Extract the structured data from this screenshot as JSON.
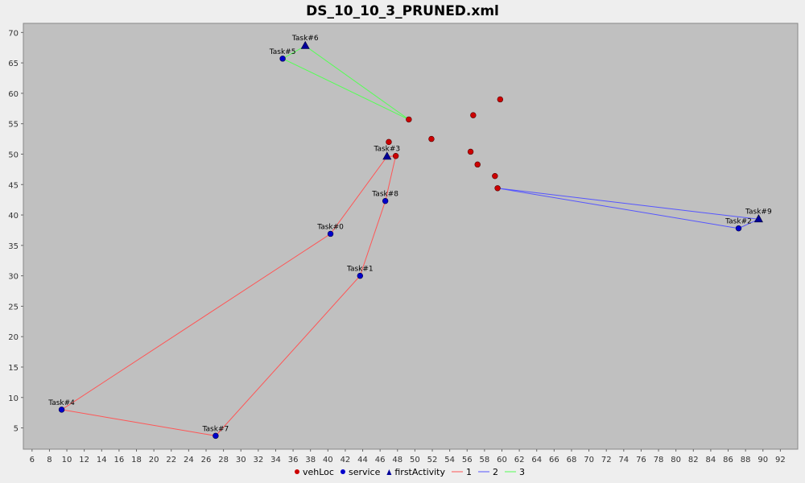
{
  "chart_data": {
    "type": "scatter",
    "title": "DS_10_10_3_PRUNED.xml",
    "xlabel": "",
    "ylabel": "",
    "xlim": [
      5,
      94
    ],
    "ylim": [
      1.5,
      71.5
    ],
    "x_ticks": [
      6,
      8,
      10,
      12,
      14,
      16,
      18,
      20,
      22,
      24,
      26,
      28,
      30,
      32,
      34,
      36,
      38,
      40,
      42,
      44,
      46,
      48,
      50,
      52,
      54,
      56,
      58,
      60,
      62,
      64,
      66,
      68,
      70,
      72,
      74,
      76,
      78,
      80,
      82,
      84,
      86,
      88,
      90,
      92
    ],
    "y_ticks": [
      5,
      10,
      15,
      20,
      25,
      30,
      35,
      40,
      45,
      50,
      55,
      60,
      65,
      70
    ],
    "grid": false,
    "legend_position": "bottom",
    "colors": {
      "plot_bg": "#c0c0c0",
      "vehLoc": "#cc0000",
      "service": "#0000cc",
      "firstActivity": "#000099",
      "route1": "#ff5555",
      "route2": "#5555ff",
      "route3": "#55ff55"
    },
    "legend": [
      {
        "label": "vehLoc",
        "kind": "dot",
        "color_key": "vehLoc"
      },
      {
        "label": "service",
        "kind": "dot",
        "color_key": "service"
      },
      {
        "label": "firstActivity",
        "kind": "triangle",
        "color_key": "firstActivity"
      },
      {
        "label": "1",
        "kind": "line",
        "color_key": "route1"
      },
      {
        "label": "2",
        "kind": "line",
        "color_key": "route2"
      },
      {
        "label": "3",
        "kind": "line",
        "color_key": "route3"
      }
    ],
    "vehLoc": [
      {
        "x": 49.3,
        "y": 55.7
      },
      {
        "x": 59.8,
        "y": 59.0
      },
      {
        "x": 56.7,
        "y": 56.4
      },
      {
        "x": 47.0,
        "y": 52.0
      },
      {
        "x": 51.9,
        "y": 52.5
      },
      {
        "x": 56.4,
        "y": 50.4
      },
      {
        "x": 47.8,
        "y": 49.7
      },
      {
        "x": 57.2,
        "y": 48.3
      },
      {
        "x": 59.2,
        "y": 46.4
      },
      {
        "x": 59.5,
        "y": 44.4
      }
    ],
    "service": [
      {
        "label": "Task#5",
        "x": 34.8,
        "y": 65.7
      },
      {
        "label": "Task#8",
        "x": 46.6,
        "y": 42.3
      },
      {
        "label": "Task#0",
        "x": 40.3,
        "y": 36.9
      },
      {
        "label": "Task#2",
        "x": 87.2,
        "y": 37.8
      },
      {
        "label": "Task#1",
        "x": 43.7,
        "y": 30.0
      },
      {
        "label": "Task#4",
        "x": 9.4,
        "y": 8.0
      },
      {
        "label": "Task#7",
        "x": 27.1,
        "y": 3.7
      }
    ],
    "firstActivity": [
      {
        "label": "Task#6",
        "x": 37.4,
        "y": 67.8
      },
      {
        "label": "Task#3",
        "x": 46.8,
        "y": 49.6
      },
      {
        "label": "Task#9",
        "x": 89.5,
        "y": 39.3
      }
    ],
    "series": [
      {
        "name": "1",
        "color_key": "route1",
        "points": [
          {
            "x": 47.8,
            "y": 49.7
          },
          {
            "x": 46.8,
            "y": 49.6
          },
          {
            "x": 40.3,
            "y": 36.9
          },
          {
            "x": 9.4,
            "y": 8.0
          },
          {
            "x": 27.1,
            "y": 3.7
          },
          {
            "x": 43.7,
            "y": 30.0
          },
          {
            "x": 46.6,
            "y": 42.3
          },
          {
            "x": 47.8,
            "y": 49.7
          }
        ]
      },
      {
        "name": "2",
        "color_key": "route2",
        "points": [
          {
            "x": 59.5,
            "y": 44.4
          },
          {
            "x": 89.5,
            "y": 39.3
          },
          {
            "x": 87.2,
            "y": 37.8
          },
          {
            "x": 59.5,
            "y": 44.4
          }
        ]
      },
      {
        "name": "3",
        "color_key": "route3",
        "points": [
          {
            "x": 49.3,
            "y": 55.7
          },
          {
            "x": 37.4,
            "y": 67.8
          },
          {
            "x": 34.8,
            "y": 65.7
          },
          {
            "x": 49.3,
            "y": 55.7
          }
        ]
      }
    ]
  }
}
